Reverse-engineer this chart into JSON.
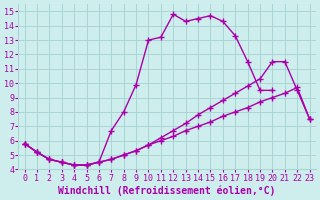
{
  "bg_color": "#ceeeed",
  "grid_color": "#aad4d4",
  "line_color": "#aa00aa",
  "marker": "+",
  "line_width": 1.0,
  "marker_size": 4,
  "marker_ew": 1.0,
  "xlabel": "Windchill (Refroidissement éolien,°C)",
  "xlabel_fontsize": 7,
  "tick_fontsize": 6,
  "ylim": [
    4,
    15.5
  ],
  "xlim": [
    -0.5,
    23.5
  ],
  "yticks": [
    4,
    5,
    6,
    7,
    8,
    9,
    10,
    11,
    12,
    13,
    14,
    15
  ],
  "xticks": [
    0,
    1,
    2,
    3,
    4,
    5,
    6,
    7,
    8,
    9,
    10,
    11,
    12,
    13,
    14,
    15,
    16,
    17,
    18,
    19,
    20,
    21,
    22,
    23
  ],
  "series1_x": [
    0,
    1,
    2,
    3,
    4,
    5,
    6,
    7,
    8,
    9,
    10,
    11,
    12,
    13,
    14,
    15,
    16,
    17,
    18,
    19,
    20,
    21,
    22,
    23
  ],
  "series1_y": [
    5.8,
    5.2,
    4.7,
    4.5,
    4.3,
    4.3,
    4.5,
    4.7,
    5.0,
    5.3,
    5.7,
    6.0,
    6.3,
    6.7,
    7.0,
    7.3,
    7.7,
    8.0,
    8.3,
    8.7,
    9.0,
    9.3,
    9.7,
    7.5
  ],
  "series2_x": [
    0,
    1,
    2,
    3,
    4,
    5,
    6,
    7,
    8,
    9,
    10,
    11,
    12,
    13,
    14,
    15,
    16,
    17,
    18,
    19,
    20
  ],
  "series2_y": [
    5.8,
    5.2,
    4.7,
    4.5,
    4.3,
    4.3,
    4.5,
    6.7,
    8.0,
    9.9,
    13.0,
    13.2,
    14.8,
    14.3,
    14.5,
    14.7,
    14.3,
    13.3,
    11.5,
    9.5,
    9.5
  ],
  "series3_x": [
    0,
    1,
    2,
    3,
    4,
    5,
    6,
    7,
    8,
    9,
    10,
    11,
    12,
    13,
    14,
    15,
    16,
    17,
    18,
    19,
    20,
    21,
    22,
    23
  ],
  "series3_y": [
    5.8,
    5.2,
    4.7,
    4.5,
    4.3,
    4.3,
    4.5,
    4.7,
    5.0,
    5.3,
    5.7,
    6.2,
    6.7,
    7.2,
    7.8,
    8.3,
    8.8,
    9.3,
    9.8,
    10.3,
    11.5,
    11.5,
    9.5,
    7.5
  ]
}
